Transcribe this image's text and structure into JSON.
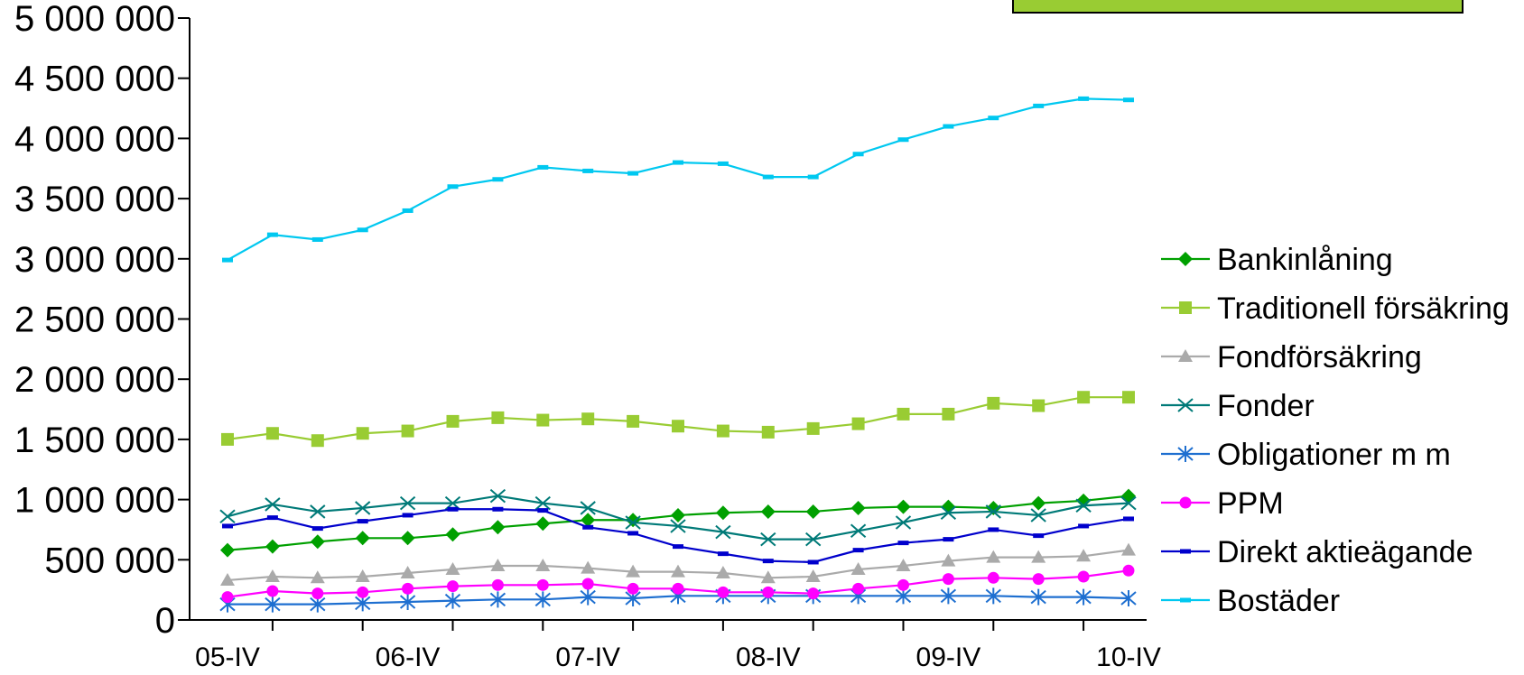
{
  "chart_data": {
    "type": "line",
    "title": "",
    "xlabel": "",
    "ylabel": "",
    "ylim": [
      0,
      5000000
    ],
    "y_ticks": [
      0,
      500000,
      1000000,
      1500000,
      2000000,
      2500000,
      3000000,
      3500000,
      4000000,
      4500000,
      5000000
    ],
    "y_tick_labels": [
      "0",
      "500 000",
      "1 000 000",
      "1 500 000",
      "2 000 000",
      "2 500 000",
      "3 000 000",
      "3 500 000",
      "4 000 000",
      "4 500 000",
      "5 000 000"
    ],
    "x": [
      "05-IV",
      "06-I",
      "06-II",
      "06-III",
      "06-IV",
      "07-I",
      "07-II",
      "07-III",
      "07-IV",
      "08-I",
      "08-II",
      "08-III",
      "08-IV",
      "09-I",
      "09-II",
      "09-III",
      "09-IV",
      "10-I",
      "10-II",
      "10-III",
      "10-IV"
    ],
    "x_tick_labels": [
      "05-IV",
      "06-IV",
      "07-IV",
      "08-IV",
      "09-IV",
      "10-IV"
    ],
    "legend_position": "right",
    "grid": false,
    "series": [
      {
        "name": "Bankinlåning",
        "color": "#00A000",
        "marker": "diamond",
        "values": [
          580000,
          610000,
          650000,
          680000,
          680000,
          710000,
          770000,
          800000,
          830000,
          830000,
          870000,
          890000,
          900000,
          900000,
          930000,
          940000,
          940000,
          930000,
          970000,
          990000,
          1030000
        ]
      },
      {
        "name": "Traditionell försäkring",
        "color": "#99CC33",
        "marker": "square",
        "values": [
          1500000,
          1550000,
          1490000,
          1550000,
          1570000,
          1650000,
          1680000,
          1660000,
          1670000,
          1650000,
          1610000,
          1570000,
          1560000,
          1590000,
          1630000,
          1710000,
          1710000,
          1800000,
          1780000,
          1850000,
          1850000
        ]
      },
      {
        "name": "Fondförsäkring",
        "color": "#AAAAAA",
        "marker": "triangle",
        "values": [
          330000,
          360000,
          350000,
          360000,
          390000,
          420000,
          450000,
          450000,
          430000,
          400000,
          400000,
          390000,
          350000,
          360000,
          420000,
          450000,
          490000,
          520000,
          520000,
          530000,
          580000
        ]
      },
      {
        "name": "Fonder",
        "color": "#007A78",
        "marker": "x",
        "values": [
          860000,
          960000,
          900000,
          930000,
          970000,
          970000,
          1030000,
          970000,
          930000,
          810000,
          780000,
          730000,
          670000,
          670000,
          740000,
          810000,
          890000,
          900000,
          870000,
          950000,
          970000
        ]
      },
      {
        "name": "Obligationer m m",
        "color": "#1E6FD0",
        "marker": "star",
        "values": [
          130000,
          130000,
          130000,
          140000,
          150000,
          160000,
          170000,
          170000,
          190000,
          180000,
          200000,
          200000,
          200000,
          200000,
          200000,
          200000,
          200000,
          200000,
          190000,
          190000,
          180000
        ]
      },
      {
        "name": "PPM",
        "color": "#FF00FF",
        "marker": "circle",
        "values": [
          190000,
          240000,
          220000,
          230000,
          260000,
          280000,
          290000,
          290000,
          300000,
          260000,
          260000,
          230000,
          230000,
          220000,
          260000,
          290000,
          340000,
          350000,
          340000,
          360000,
          410000
        ]
      },
      {
        "name": "Direkt aktieägande",
        "color": "#0000CC",
        "marker": "dash",
        "values": [
          780000,
          850000,
          760000,
          820000,
          870000,
          920000,
          920000,
          910000,
          770000,
          720000,
          610000,
          550000,
          490000,
          480000,
          580000,
          640000,
          670000,
          750000,
          700000,
          780000,
          840000
        ]
      },
      {
        "name": "Bostäder",
        "color": "#00C8F0",
        "marker": "dash",
        "values": [
          2990000,
          3200000,
          3160000,
          3240000,
          3400000,
          3600000,
          3660000,
          3760000,
          3730000,
          3710000,
          3800000,
          3790000,
          3680000,
          3680000,
          3870000,
          3990000,
          4100000,
          4170000,
          4270000,
          4330000,
          4320000
        ]
      }
    ]
  },
  "legend_box": {
    "fill": "#99CC33",
    "border": "#000000"
  }
}
